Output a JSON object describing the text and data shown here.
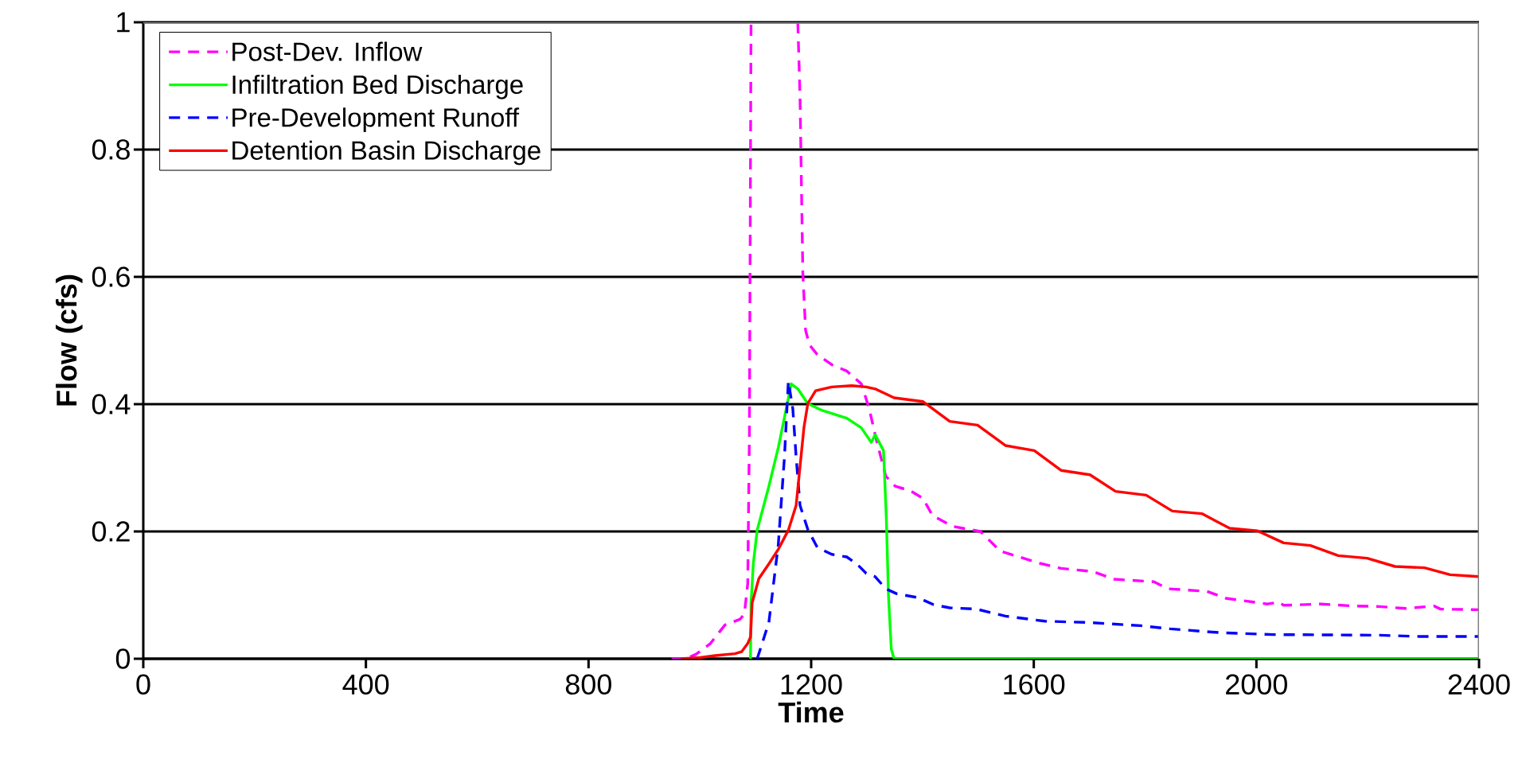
{
  "chart_data": {
    "type": "line",
    "xlabel": "Time",
    "ylabel": "Flow (cfs)",
    "xlim": [
      0,
      2400
    ],
    "xticks": [
      0,
      400,
      800,
      1200,
      1600,
      2000,
      2400
    ],
    "ylim": [
      0,
      1
    ],
    "yticks": [
      0,
      0.2,
      0.4,
      0.6,
      0.8,
      1
    ],
    "grid": "y",
    "legend": "top left",
    "marker": "none",
    "series": [
      {
        "name": "Post-Dev. Inflow",
        "color": "#ff00ff",
        "line_style": "dashed",
        "x": [
          949,
          975,
          993,
          1019,
          1045,
          1072,
          1080,
          1086,
          1089,
          1092,
          1134,
          1176,
          1180,
          1185,
          1190,
          1197,
          1211,
          1237,
          1264,
          1290,
          1304,
          1316,
          1334,
          1351,
          1378,
          1401,
          1418,
          1454,
          1504,
          1540,
          1611,
          1649,
          1706,
          1744,
          1816,
          1840,
          1911,
          1945,
          2020,
          2040,
          2049,
          2116,
          2173,
          2221,
          2269,
          2319,
          2331,
          2400
        ],
        "values": [
          0,
          0,
          0.007,
          0.024,
          0.053,
          0.062,
          0.07,
          0.118,
          0.348,
          1.0,
          null,
          1.0,
          0.883,
          0.607,
          0.516,
          0.493,
          0.478,
          0.462,
          0.452,
          0.432,
          0.394,
          0.348,
          0.287,
          0.271,
          0.264,
          0.252,
          0.225,
          0.208,
          0.2,
          0.169,
          0.15,
          0.142,
          0.137,
          0.125,
          0.121,
          0.11,
          0.106,
          0.095,
          0.086,
          0.089,
          0.084,
          0.086,
          0.083,
          0.082,
          0.079,
          0.083,
          0.078,
          0.077
        ]
      },
      {
        "name": "Infiltration Bed Discharge",
        "color": "#00ff00",
        "line_style": "solid",
        "x": [
          1091,
          1092,
          1096,
          1103,
          1124,
          1141,
          1159,
          1164,
          1176,
          1194,
          1220,
          1264,
          1290,
          1308,
          1315,
          1330,
          1335,
          1339,
          1344,
          1349,
          2400
        ],
        "values": [
          0,
          0.087,
          0.149,
          0.202,
          0.271,
          0.332,
          0.409,
          0.432,
          0.424,
          0.401,
          0.39,
          0.378,
          0.363,
          0.34,
          0.352,
          0.327,
          0.223,
          0.098,
          0.015,
          0,
          0
        ]
      },
      {
        "name": "Pre-Development Runoff",
        "color": "#0000ff",
        "line_style": "dashed",
        "x": [
          1103,
          1124,
          1141,
          1152,
          1159,
          1167,
          1173,
          1180,
          1194,
          1211,
          1237,
          1264,
          1282,
          1299,
          1315,
          1334,
          1354,
          1392,
          1420,
          1449,
          1497,
          1549,
          1620,
          1697,
          1792,
          1845,
          1935,
          2030,
          2221,
          2293,
          2400
        ],
        "values": [
          0,
          0.057,
          0.18,
          0.317,
          0.436,
          0.393,
          0.317,
          0.241,
          0.203,
          0.175,
          0.164,
          0.16,
          0.149,
          0.134,
          0.129,
          0.11,
          0.102,
          0.096,
          0.085,
          0.08,
          0.078,
          0.067,
          0.059,
          0.057,
          0.052,
          0.047,
          0.041,
          0.038,
          0.037,
          0.035,
          0.035
        ]
      },
      {
        "name": "Detention Basin Discharge",
        "color": "#ff0000",
        "line_style": "solid",
        "x": [
          966,
          1001,
          1028,
          1063,
          1075,
          1086,
          1091,
          1094,
          1106,
          1124,
          1141,
          1159,
          1173,
          1180,
          1187,
          1194,
          1208,
          1237,
          1273,
          1299,
          1315,
          1349,
          1401,
          1449,
          1499,
          1549,
          1601,
          1649,
          1701,
          1747,
          1802,
          1849,
          1902,
          1952,
          2002,
          2049,
          2097,
          2147,
          2199,
          2249,
          2302,
          2348,
          2400
        ],
        "values": [
          0,
          0.002,
          0.005,
          0.008,
          0.011,
          0.024,
          0.034,
          0.088,
          0.126,
          0.149,
          0.172,
          0.202,
          0.241,
          0.302,
          0.363,
          0.401,
          0.421,
          0.427,
          0.429,
          0.427,
          0.424,
          0.41,
          0.404,
          0.373,
          0.367,
          0.335,
          0.327,
          0.296,
          0.289,
          0.263,
          0.257,
          0.232,
          0.228,
          0.205,
          0.201,
          0.182,
          0.178,
          0.162,
          0.158,
          0.145,
          0.143,
          0.132,
          0.129
        ]
      }
    ]
  }
}
